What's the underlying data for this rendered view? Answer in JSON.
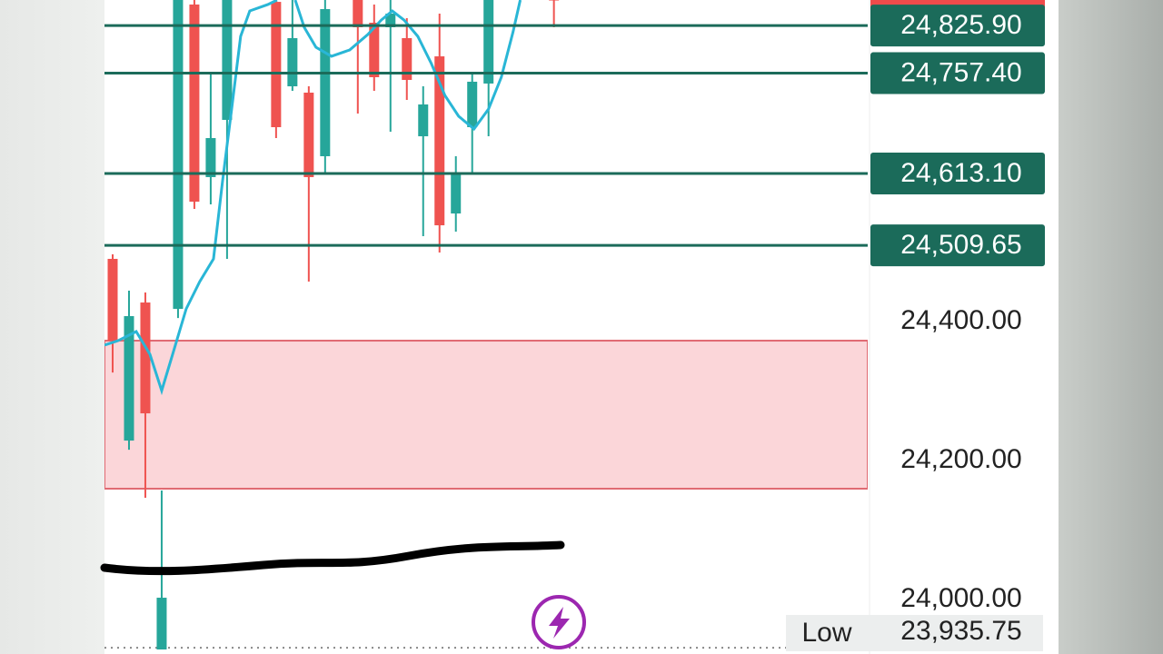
{
  "chart_data": {
    "type": "candlestick",
    "ylim": [
      23921.6,
      24862.7
    ],
    "xlim": [
      -0.5,
      46.2
    ],
    "yticks": [
      {
        "value": 24000,
        "label": "24,000.00"
      },
      {
        "value": 24200,
        "label": "24,200.00"
      },
      {
        "value": 24400,
        "label": "24,400.00"
      }
    ],
    "colors": {
      "up": "#26a69a",
      "down": "#ef5350"
    },
    "candles": {
      "x": [
        0,
        1,
        2,
        3,
        4,
        5,
        6,
        7,
        10,
        11,
        12,
        13,
        15,
        16,
        17,
        18,
        19,
        20,
        21,
        22,
        23,
        27
      ],
      "open": [
        24490.2,
        24228.7,
        24427.4,
        23928.1,
        24418.2,
        24856.2,
        24607.8,
        24690.2,
        24860,
        24738.5,
        24729.4,
        24637.9,
        24870,
        24830.0,
        24823.5,
        24807.8,
        24666.6,
        24781.6,
        24555.5,
        24679.7,
        24742.5,
        24870
      ],
      "high": [
        24496.7,
        24444.4,
        24441.8,
        24156.8,
        24870,
        24870,
        24758.1,
        24870,
        24870,
        24870,
        24738.5,
        24870,
        24870,
        24856.2,
        24870,
        24836.6,
        24738.5,
        24843.1,
        24637.9,
        24758.1,
        24870,
        24875
      ],
      "low": [
        24326.7,
        24215.6,
        24146.4,
        23928.1,
        24405.1,
        24562.0,
        24568.6,
        24490.2,
        24664.0,
        24732.0,
        24457.5,
        24614.3,
        24699.3,
        24732.0,
        24673.2,
        24718.9,
        24522.8,
        24499.3,
        24529.4,
        24614.3,
        24666.6,
        24823.5
      ],
      "close": [
        24372.5,
        24407.8,
        24267.9,
        24002.6,
        24865,
        24572.5,
        24664.0,
        24865,
        24679.7,
        24807.8,
        24607.8,
        24849.6,
        24823.5,
        24751.6,
        24843.1,
        24747.7,
        24712.4,
        24538.5,
        24611.7,
        24745.1,
        24865,
        24862
      ]
    },
    "ma": {
      "color": "#29b6d6",
      "x": [
        -0.5,
        0.33,
        1.44,
        2.28,
        3.0,
        3.67,
        4.5,
        5.33,
        6.17,
        6.72,
        7.28,
        7.83,
        8.39,
        9.5,
        10.06,
        null,
        11.17,
        11.72,
        12.44,
        13.39,
        14.5,
        15.61,
        16.44,
        17.11,
        17.83,
        18.67,
        19.5,
        20.33,
        21.17,
        22.11,
        23.0,
        23.78,
        24.5,
        24.94
      ],
      "values": [
        24366.0,
        24372.5,
        24385.6,
        24352.9,
        24300.6,
        24352.9,
        24418.3,
        24457.5,
        24490.2,
        24601.3,
        24705.8,
        24810.4,
        24847.0,
        24856.2,
        24862.7,
        null,
        24862.7,
        24823.5,
        24794.7,
        24781.7,
        24790.8,
        24813.0,
        24833.9,
        24847.0,
        24833.9,
        24810.4,
        24771.2,
        24725.4,
        24695.4,
        24677.1,
        24705.8,
        24751.6,
        24816.9,
        24862.7
      ]
    },
    "levels": [
      {
        "value": 24825.9,
        "label": "24,825.90"
      },
      {
        "value": 24757.4,
        "label": "24,757.40"
      },
      {
        "value": 24613.1,
        "label": "24,613.10"
      },
      {
        "value": 24509.65,
        "label": "24,509.65"
      }
    ],
    "level_color": "#1b6b5a",
    "zone": {
      "low": 24159.5,
      "high": 24372.5,
      "fill": "#fbd6d9",
      "stroke": "#e06a72"
    },
    "low_marker": {
      "label": "Low",
      "value": 23935.75,
      "value_label": "23,935.75"
    }
  }
}
